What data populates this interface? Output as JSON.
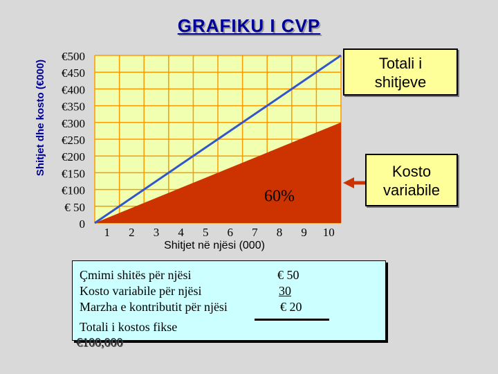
{
  "chart_data": {
    "type": "line",
    "title": "GRAFIKU I CVP",
    "xlabel": "Shitjet në njësi (000)",
    "ylabel": "Shitjet dhe kosto (€000)",
    "x_ticks": [
      "1",
      "2",
      "3",
      "4",
      "5",
      "6",
      "7",
      "8",
      "9",
      "10"
    ],
    "y_ticks": [
      "€500",
      "€450",
      "€400",
      "€350",
      "€300",
      "€250",
      "€200",
      "€150",
      "€100",
      "€ 50",
      "0"
    ],
    "xlim": [
      0,
      10
    ],
    "ylim": [
      0,
      500
    ],
    "grid": true,
    "series": [
      {
        "name": "Totali i shitjeve",
        "x": [
          0,
          10
        ],
        "y": [
          0,
          500
        ]
      },
      {
        "name": "Kosto variabile",
        "x": [
          0,
          10
        ],
        "y": [
          0,
          300
        ]
      }
    ],
    "annotations": {
      "variable_ratio": "60%"
    }
  },
  "callouts": {
    "revenue": [
      "Totali i",
      "shitjeve"
    ],
    "variable": [
      "Kosto",
      "variabile"
    ]
  },
  "info": {
    "rows": [
      {
        "label": "Çmimi shitës për njësi",
        "value": "€ 50"
      },
      {
        "label": "Kosto variabile për njësi",
        "value": "30"
      },
      {
        "label": "Marzha e kontributit për njësi",
        "value": "€ 20"
      },
      {
        "label": "Totali i kostos fikse",
        "value": "€100,000"
      }
    ]
  },
  "colors": {
    "plot_bg": "#f0ffb0",
    "grid": "#ff9900",
    "revenue_line": "#3355cc",
    "variable_fill": "#cc3300",
    "arrow_revenue": "#3399cc",
    "arrow_variable": "#cc3300"
  }
}
